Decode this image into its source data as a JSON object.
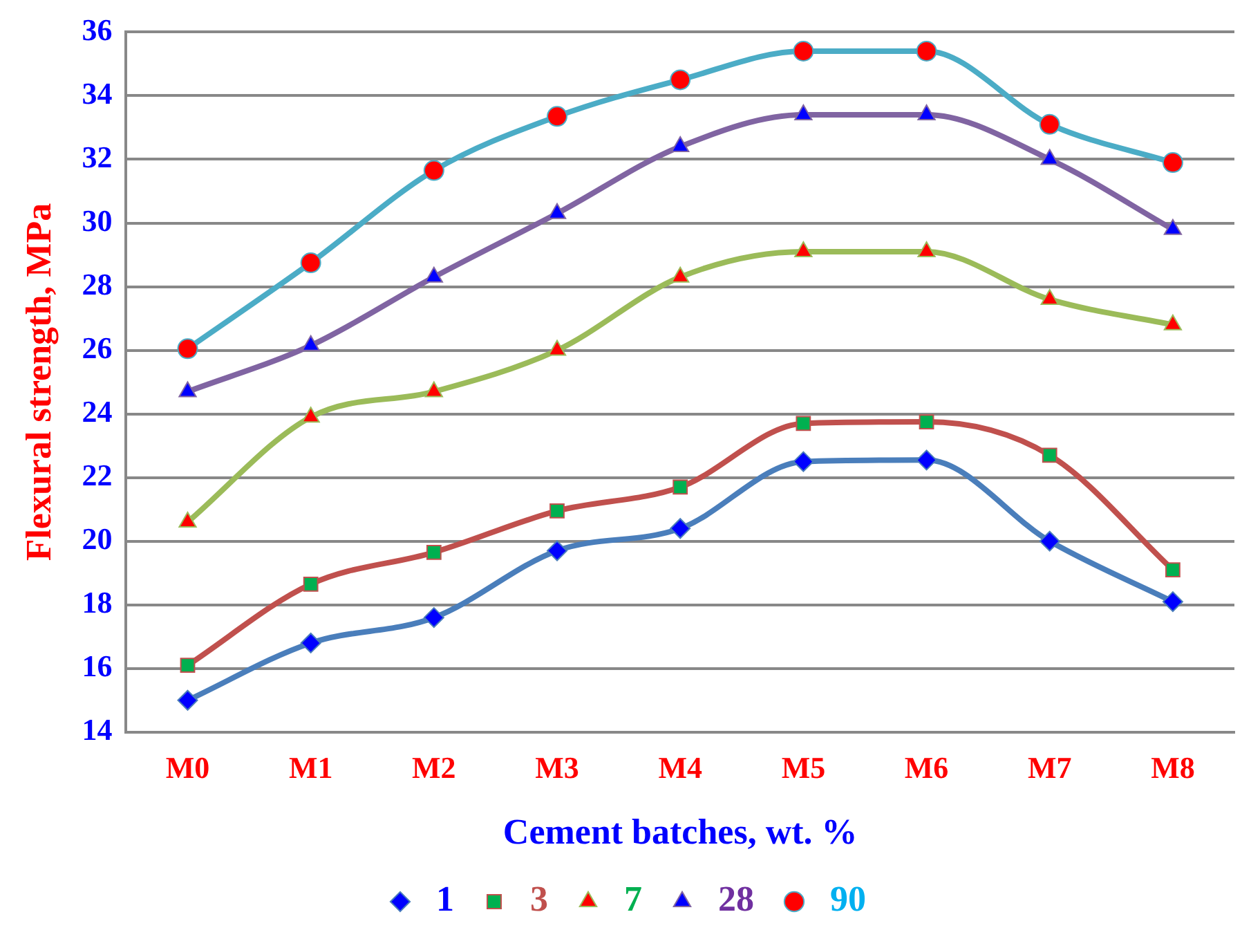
{
  "chart_data": {
    "type": "line",
    "xlabel": "Cement batches, wt. %",
    "ylabel": "Flexural strength, MPa",
    "categories": [
      "M0",
      "M1",
      "M2",
      "M3",
      "M4",
      "M5",
      "M6",
      "M7",
      "M8"
    ],
    "series": [
      {
        "name": "1",
        "color": "#4a7ebb",
        "marker": "diamond",
        "values": [
          15.0,
          16.8,
          17.6,
          19.7,
          20.4,
          22.5,
          22.55,
          20.0,
          18.1
        ]
      },
      {
        "name": "3",
        "color": "#c0504d",
        "marker": "square",
        "values": [
          16.1,
          18.65,
          19.65,
          20.95,
          21.7,
          23.7,
          23.75,
          22.7,
          19.1
        ]
      },
      {
        "name": "7",
        "color": "#9bbb59",
        "marker": "triangle",
        "values": [
          20.6,
          23.9,
          24.7,
          26.0,
          28.3,
          29.1,
          29.1,
          27.6,
          26.8
        ]
      },
      {
        "name": "28",
        "color": "#8064a2",
        "marker": "triangle",
        "values": [
          24.7,
          26.15,
          28.3,
          30.3,
          32.4,
          33.4,
          33.4,
          32.0,
          29.8
        ]
      },
      {
        "name": "90",
        "color": "#4bacc6",
        "marker": "circle",
        "values": [
          26.05,
          28.75,
          31.65,
          33.35,
          34.5,
          35.4,
          35.4,
          33.1,
          31.9
        ]
      }
    ],
    "ylim": [
      14,
      36
    ],
    "yticks": [
      14,
      16,
      18,
      20,
      22,
      24,
      26,
      28,
      30,
      32,
      34,
      36
    ],
    "grid": "y",
    "legend": "bottom",
    "line_style": "solid"
  }
}
